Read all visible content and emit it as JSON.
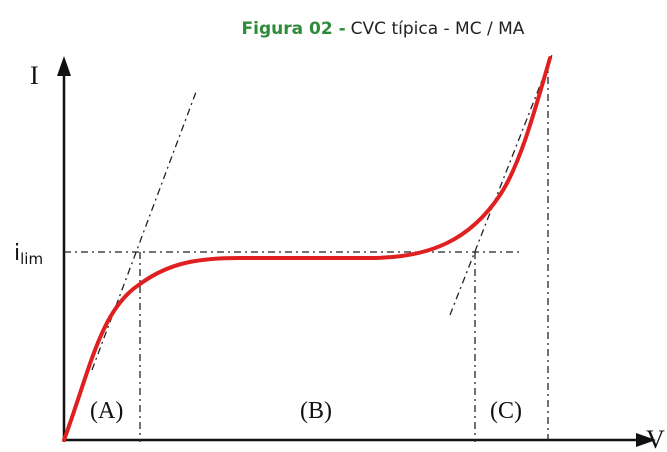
{
  "title": {
    "label": "Figura 02 -",
    "text": "CVC típica - MC / MA"
  },
  "axes": {
    "y": "I",
    "x": "V",
    "limit": {
      "symbol": "i",
      "subscript": "lim"
    }
  },
  "regions": [
    "(A)",
    "(B)",
    "(C)"
  ]
}
